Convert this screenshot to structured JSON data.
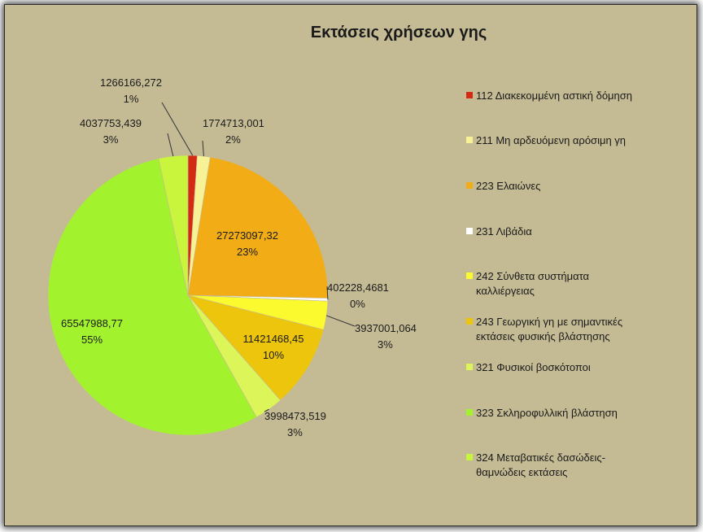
{
  "chart_data": {
    "type": "pie",
    "title": "Εκτάσεις χρήσεων γης",
    "legend_position": "right",
    "slices": [
      {
        "label": "112 Διακεκομμένη αστική δόμηση",
        "value": "1266166,272",
        "percent": "1%",
        "color": "#d42a14"
      },
      {
        "label": "211 Μη αρδευόμενη αρόσιμη γη",
        "value": "1774713,001",
        "percent": "2%",
        "color": "#f8f296"
      },
      {
        "label": "223 Ελαιώνες",
        "value": "27273097,32",
        "percent": "23%",
        "color": "#f2ad16"
      },
      {
        "label": "231 Λιβάδια",
        "value": "402228,4681",
        "percent": "0%",
        "color": "#ffffff"
      },
      {
        "label": "242 Σύνθετα συστήματα καλλιέργειας",
        "value": "3937001,064",
        "percent": "3%",
        "color": "#fafa2e"
      },
      {
        "label": "243 Γεωργική γη με σημαντικές εκτάσεις φυσικής βλάστησης",
        "value": "11421468,45",
        "percent": "10%",
        "color": "#ecc50c"
      },
      {
        "label": "321 Φυσικοί βοσκότοποι",
        "value": "3998473,519",
        "percent": "3%",
        "color": "#dcf558"
      },
      {
        "label": "323 Σκληροφυλλική βλάστηση",
        "value": "65547988,77",
        "percent": "55%",
        "color": "#a3f22e"
      },
      {
        "label": "324 Μεταβατικές δασώδεις-θαμνώδεις εκτάσεις",
        "value": "4037753,439",
        "percent": "3%",
        "color": "#c9f63c"
      }
    ]
  }
}
